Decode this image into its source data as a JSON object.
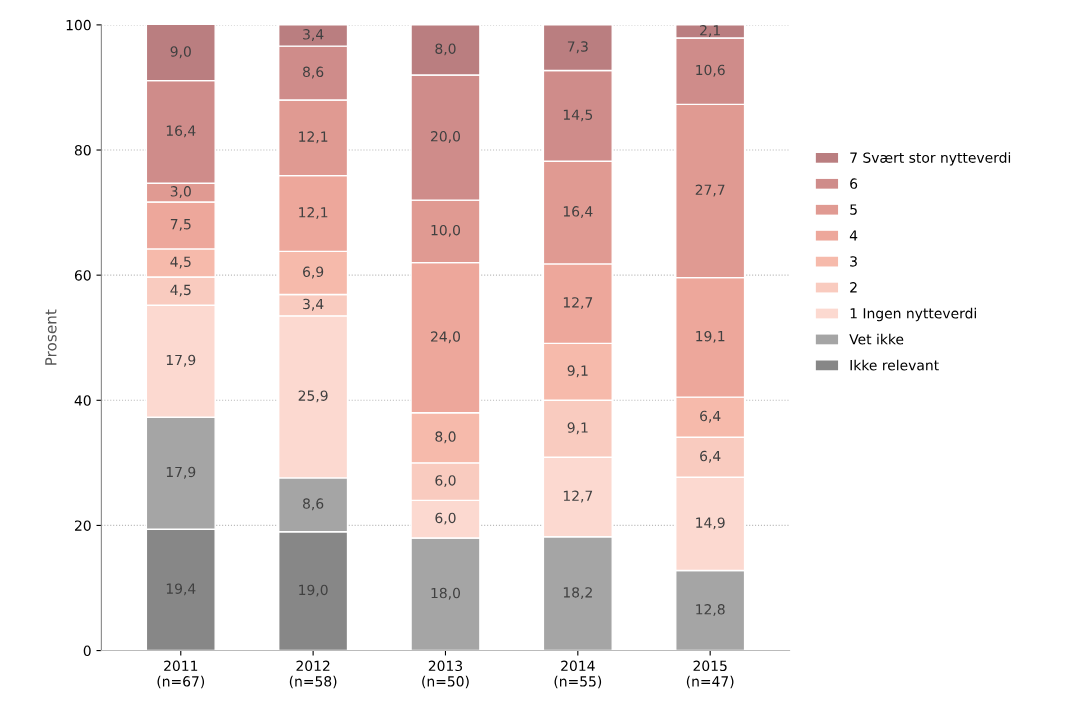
{
  "chart_data": {
    "type": "bar",
    "stacked": true,
    "ylabel": "Prosent",
    "categories": [
      "2011\n(n=67)",
      "2012\n(n=58)",
      "2013\n(n=50)",
      "2014\n(n=55)",
      "2015\n(n=47)"
    ],
    "ylim": [
      0,
      100
    ],
    "yticks": [
      0,
      20,
      40,
      60,
      80,
      100
    ],
    "grid": "y",
    "legend": "right",
    "series": [
      {
        "name": "Ikke relevant",
        "color": "#878787",
        "values": [
          19.4,
          19.0,
          null,
          null,
          null
        ],
        "value_labels": [
          "19,4",
          "19,0",
          null,
          null,
          null
        ]
      },
      {
        "name": "Vet ikke",
        "color": "#a5a5a5",
        "values": [
          17.9,
          8.6,
          18.0,
          18.2,
          12.8
        ],
        "value_labels": [
          "17,9",
          "8,6",
          "18,0",
          "18,2",
          "12,8"
        ]
      },
      {
        "name": "1 Ingen nytteverdi",
        "color": "#fcd9d0",
        "values": [
          17.9,
          25.9,
          6.0,
          12.7,
          14.9
        ],
        "value_labels": [
          "17,9",
          "25,9",
          "6,0",
          "12,7",
          "14,9"
        ]
      },
      {
        "name": "2",
        "color": "#f9cbbf",
        "values": [
          4.5,
          3.4,
          6.0,
          9.1,
          6.4
        ],
        "value_labels": [
          "4,5",
          "3,4",
          "6,0",
          "9,1",
          "6,4"
        ]
      },
      {
        "name": "3",
        "color": "#f6baab",
        "values": [
          4.5,
          6.9,
          8.0,
          9.1,
          6.4
        ],
        "value_labels": [
          "4,5",
          "6,9",
          "8,0",
          "9,1",
          "6,4"
        ]
      },
      {
        "name": "4",
        "color": "#eda79b",
        "values": [
          7.5,
          12.1,
          24.0,
          12.7,
          19.1
        ],
        "value_labels": [
          "7,5",
          "12,1",
          "24,0",
          "12,7",
          "19,1"
        ]
      },
      {
        "name": "5",
        "color": "#e09a92",
        "values": [
          3.0,
          12.1,
          10.0,
          16.4,
          27.7
        ],
        "value_labels": [
          "3,0",
          "12,1",
          "10,0",
          "16,4",
          "27,7"
        ]
      },
      {
        "name": "6",
        "color": "#cf8c8a",
        "values": [
          16.4,
          8.6,
          20.0,
          14.5,
          10.6
        ],
        "value_labels": [
          "16,4",
          "8,6",
          "20,0",
          "14,5",
          "10,6"
        ]
      },
      {
        "name": "7 Svært stor nytteverdi",
        "color": "#ba7e80",
        "values": [
          9.0,
          3.4,
          8.0,
          7.3,
          2.1
        ],
        "value_labels": [
          "9,0",
          "3,4",
          "8,0",
          "7,3",
          "2,1"
        ]
      }
    ]
  }
}
